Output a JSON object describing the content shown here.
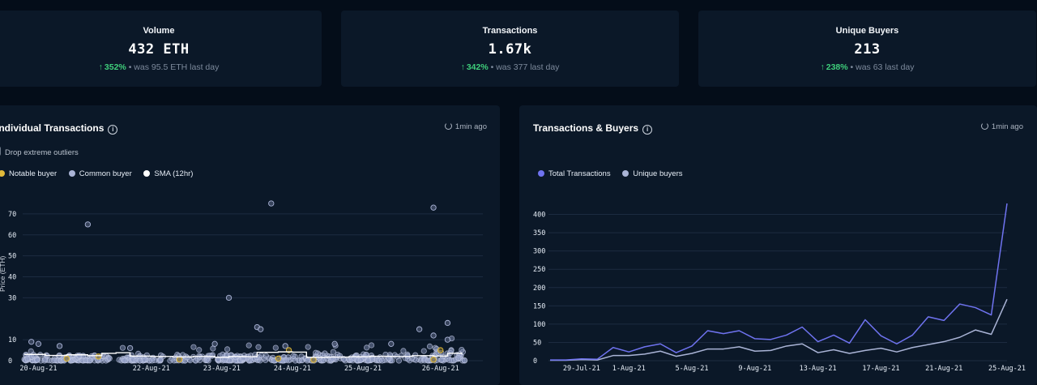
{
  "stats": [
    {
      "label": "Volume",
      "value": "432 ETH",
      "change": "352%",
      "was": "• was 95.5 ETH last day"
    },
    {
      "label": "Transactions",
      "value": "1.67k",
      "change": "342%",
      "was": "• was 377 last day"
    },
    {
      "label": "Unique Buyers",
      "value": "213",
      "change": "238%",
      "was": "• was 63 last day"
    }
  ],
  "individual_panel": {
    "title": "Individual Transactions",
    "updated": "1min ago",
    "checkbox_label": "Drop extreme outliers",
    "legend": [
      {
        "label": "Notable buyer",
        "color": "#e0b93a"
      },
      {
        "label": "Common buyer",
        "color": "#aab4d6"
      },
      {
        "label": "SMA (12hr)",
        "color": "#ffffff"
      }
    ],
    "ylabel": "Price (ETH)"
  },
  "tx_buyers_panel": {
    "title": "Transactions & Buyers",
    "updated": "1min ago",
    "legend": [
      {
        "label": "Total Transactions",
        "color": "#6f73f0"
      },
      {
        "label": "Unique buyers",
        "color": "#aab4d6"
      }
    ]
  },
  "chart_data": [
    {
      "type": "scatter",
      "title": "Individual Transactions",
      "ylabel": "Price (ETH)",
      "ylim": [
        0,
        75
      ],
      "x_tick_labels": [
        "20-Aug-21",
        "22-Aug-21",
        "23-Aug-21",
        "24-Aug-21",
        "25-Aug-21",
        "26-Aug-21"
      ],
      "y_tick_labels": [
        "0",
        "10",
        "30",
        "40",
        "50",
        "60",
        "70"
      ],
      "y_ticks": [
        0,
        10,
        30,
        40,
        50,
        60,
        70
      ],
      "xlim_days": [
        0,
        6.5
      ],
      "x_tick_days": [
        0.2,
        1.8,
        2.8,
        3.8,
        4.8,
        5.9
      ],
      "outliers": [
        {
          "d": 0.9,
          "v": 65
        },
        {
          "d": 3.5,
          "v": 75
        },
        {
          "d": 5.8,
          "v": 73
        },
        {
          "d": 2.9,
          "v": 30
        },
        {
          "d": 3.3,
          "v": 16
        },
        {
          "d": 3.35,
          "v": 15
        },
        {
          "d": 5.6,
          "v": 15
        },
        {
          "d": 6.0,
          "v": 18
        },
        {
          "d": 6.0,
          "v": 10
        },
        {
          "d": 0.1,
          "v": 9
        },
        {
          "d": 0.2,
          "v": 8
        },
        {
          "d": 1.5,
          "v": 6
        },
        {
          "d": 3.7,
          "v": 7
        },
        {
          "d": 4.4,
          "v": 8
        },
        {
          "d": 5.2,
          "v": 8
        },
        {
          "d": 5.8,
          "v": 12
        },
        {
          "d": 0.5,
          "v": 7
        },
        {
          "d": 2.7,
          "v": 8
        }
      ],
      "notable": [
        {
          "d": 3.75,
          "v": 5
        },
        {
          "d": 1.05,
          "v": 2
        },
        {
          "d": 0.6,
          "v": 1
        },
        {
          "d": 5.9,
          "v": 5
        },
        {
          "d": 5.8,
          "v": 0.5
        },
        {
          "d": 3.6,
          "v": 1
        },
        {
          "d": 2.2,
          "v": 0.6
        },
        {
          "d": 4.1,
          "v": 0.4
        }
      ],
      "sma": [
        {
          "d": 0.0,
          "v": 3
        },
        {
          "d": 0.3,
          "v": 2.5
        },
        {
          "d": 0.6,
          "v": 2.8
        },
        {
          "d": 0.9,
          "v": 2.4
        },
        {
          "d": 1.1,
          "v": 3.5
        },
        {
          "d": 1.3,
          "v": 3.8
        },
        {
          "d": 1.5,
          "v": 2.2
        },
        {
          "d": 1.8,
          "v": 2.0
        },
        {
          "d": 2.1,
          "v": 1.8
        },
        {
          "d": 2.4,
          "v": 2.0
        },
        {
          "d": 2.7,
          "v": 1.6
        },
        {
          "d": 2.9,
          "v": 2.0
        },
        {
          "d": 3.1,
          "v": 1.9
        },
        {
          "d": 3.3,
          "v": 4.0
        },
        {
          "d": 3.6,
          "v": 4.2
        },
        {
          "d": 3.8,
          "v": 4.1
        },
        {
          "d": 4.0,
          "v": 1.6
        },
        {
          "d": 4.3,
          "v": 1.7
        },
        {
          "d": 4.6,
          "v": 1.9
        },
        {
          "d": 4.9,
          "v": 2.1
        },
        {
          "d": 5.2,
          "v": 2.0
        },
        {
          "d": 5.5,
          "v": 2.4
        },
        {
          "d": 5.8,
          "v": 2.2
        },
        {
          "d": 6.0,
          "v": 3.5
        },
        {
          "d": 6.2,
          "v": 3.0
        }
      ]
    },
    {
      "type": "line",
      "title": "Transactions & Buyers",
      "ylim": [
        0,
        430
      ],
      "y_ticks": [
        0,
        50,
        100,
        150,
        200,
        250,
        300,
        350,
        400
      ],
      "x_tick_labels": [
        "29-Jul-21",
        "1-Aug-21",
        "5-Aug-21",
        "9-Aug-21",
        "13-Aug-21",
        "17-Aug-21",
        "21-Aug-21",
        "25-Aug-21"
      ],
      "x_tick_index": [
        3,
        6,
        10,
        14,
        18,
        22,
        26,
        30
      ],
      "series": [
        {
          "name": "Total Transactions",
          "color": "#6f73f0",
          "values": [
            2,
            2,
            5,
            4,
            36,
            24,
            38,
            46,
            22,
            40,
            82,
            74,
            82,
            60,
            58,
            70,
            92,
            52,
            70,
            48,
            112,
            68,
            46,
            70,
            120,
            110,
            155,
            145,
            125,
            430
          ]
        },
        {
          "name": "Unique buyers",
          "color": "#aab4d6",
          "values": [
            1,
            1,
            3,
            2,
            14,
            14,
            18,
            26,
            12,
            20,
            32,
            32,
            38,
            26,
            28,
            40,
            46,
            22,
            30,
            20,
            28,
            34,
            24,
            36,
            44,
            52,
            64,
            84,
            72,
            168
          ]
        }
      ]
    }
  ]
}
